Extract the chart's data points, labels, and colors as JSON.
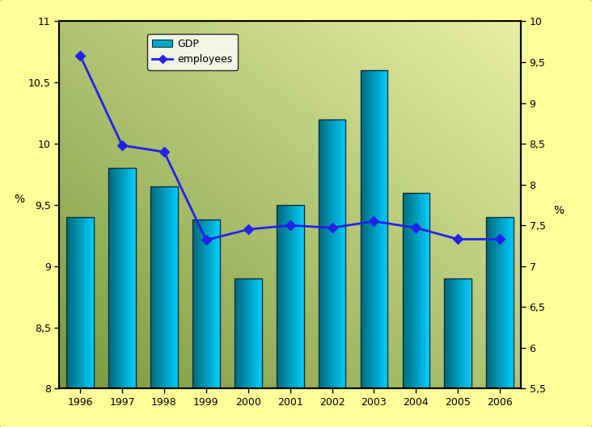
{
  "years": [
    1996,
    1997,
    1998,
    1999,
    2000,
    2001,
    2002,
    2003,
    2004,
    2005,
    2006
  ],
  "gdp_values": [
    9.4,
    9.8,
    9.65,
    9.38,
    8.9,
    9.5,
    10.2,
    10.6,
    9.6,
    8.9,
    9.4
  ],
  "employees_values": [
    9.58,
    8.48,
    8.4,
    7.32,
    7.45,
    7.5,
    7.47,
    7.55,
    7.47,
    7.33,
    7.33
  ],
  "ylim_left": [
    8.0,
    11.0
  ],
  "ylim_right": [
    5.5,
    10.0
  ],
  "yticks_left": [
    8.0,
    8.5,
    9.0,
    9.5,
    10.0,
    10.5,
    11.0
  ],
  "yticks_right": [
    5.5,
    6.0,
    6.5,
    7.0,
    7.5,
    8.0,
    8.5,
    9.0,
    9.5,
    10.0
  ],
  "ylabel_left": "%",
  "ylabel_right": "%",
  "bar_color_left": "#007090",
  "bar_color_right": "#00d8ff",
  "line_color": "#2222ee",
  "marker_color": "#2222ee",
  "background_outer": "#ffff99",
  "legend_gdp": "GDP",
  "legend_employees": "employees",
  "bar_width": 0.65,
  "xlim": [
    1995.5,
    2006.5
  ]
}
